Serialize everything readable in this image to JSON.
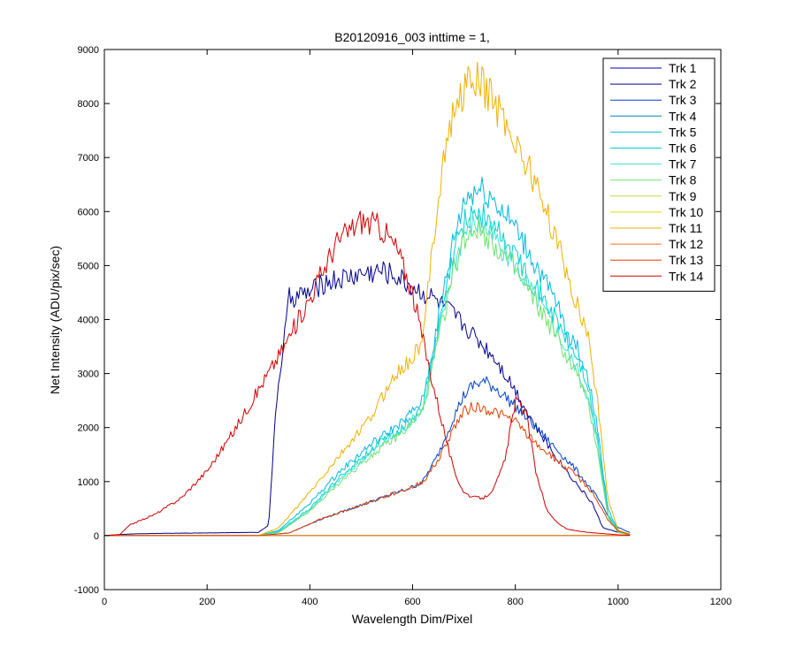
{
  "chart_data": {
    "type": "line",
    "title": "B20120916_003 inttime = 1,",
    "xlabel": "Wavelength Dim/Pixel",
    "ylabel": "Net Intensity (ADU/pix/sec)",
    "xlim": [
      0,
      1200
    ],
    "ylim": [
      -1000,
      9000
    ],
    "xticks": [
      0,
      200,
      400,
      600,
      800,
      1000,
      1200
    ],
    "yticks": [
      -1000,
      0,
      1000,
      2000,
      3000,
      4000,
      5000,
      6000,
      7000,
      8000,
      9000
    ],
    "grid": false,
    "legend_position": "top-right",
    "series": [
      {
        "name": "Trk 1",
        "color": "#0000a8",
        "x": [
          0,
          50,
          100,
          200,
          300,
          500,
          600,
          700,
          800,
          900,
          1000,
          1024
        ],
        "y": [
          0,
          0,
          0,
          0,
          0,
          0,
          0,
          0,
          0,
          0,
          0,
          0
        ]
      },
      {
        "name": "Trk 2",
        "color": "#00008f",
        "x": [
          0,
          50,
          100,
          200,
          300,
          320,
          335,
          360,
          400,
          430,
          460,
          500,
          540,
          570,
          600,
          640,
          680,
          700,
          720,
          760,
          800,
          840,
          880,
          920,
          950,
          970,
          1000,
          1024
        ],
        "y": [
          0,
          30,
          40,
          50,
          60,
          200,
          2500,
          4400,
          4500,
          4700,
          4750,
          4850,
          4900,
          4800,
          4600,
          4400,
          4100,
          3900,
          3700,
          3300,
          2700,
          2000,
          1450,
          950,
          600,
          150,
          60,
          20
        ]
      },
      {
        "name": "Trk 3",
        "color": "#0040c8",
        "x": [
          0,
          300,
          360,
          420,
          480,
          540,
          600,
          620,
          650,
          680,
          700,
          720,
          740,
          760,
          800,
          840,
          880,
          920,
          960,
          990,
          1024
        ],
        "y": [
          0,
          0,
          50,
          300,
          500,
          700,
          900,
          1000,
          1500,
          2200,
          2600,
          2800,
          2850,
          2750,
          2400,
          2000,
          1600,
          1200,
          700,
          200,
          50
        ]
      },
      {
        "name": "Trk 4",
        "color": "#0080c0",
        "x": [
          0,
          300,
          400,
          500,
          600,
          700,
          800,
          900,
          1024
        ],
        "y": [
          0,
          0,
          0,
          0,
          0,
          0,
          0,
          0,
          0
        ]
      },
      {
        "name": "Trk 5",
        "color": "#00b8e0",
        "x": [
          0,
          300,
          340,
          400,
          460,
          520,
          580,
          620,
          650,
          680,
          700,
          720,
          740,
          760,
          800,
          840,
          880,
          900,
          920,
          940,
          960,
          980,
          1000,
          1024
        ],
        "y": [
          0,
          0,
          100,
          600,
          1200,
          1700,
          2100,
          2500,
          4000,
          5500,
          6200,
          6400,
          6400,
          6200,
          5700,
          5000,
          4300,
          3800,
          3500,
          3000,
          2000,
          500,
          100,
          20
        ]
      },
      {
        "name": "Trk 6",
        "color": "#00d0d0",
        "x": [
          0,
          300,
          340,
          400,
          460,
          520,
          580,
          620,
          650,
          680,
          700,
          720,
          740,
          760,
          800,
          840,
          880,
          900,
          920,
          940,
          960,
          980,
          1000,
          1024
        ],
        "y": [
          0,
          0,
          80,
          500,
          1100,
          1600,
          2000,
          2400,
          3800,
          5200,
          5800,
          6000,
          5900,
          5700,
          5200,
          4600,
          4000,
          3600,
          3300,
          2800,
          1800,
          400,
          80,
          10
        ]
      },
      {
        "name": "Trk 7",
        "color": "#40e0d0",
        "x": [
          0,
          300,
          340,
          400,
          460,
          520,
          580,
          620,
          650,
          680,
          700,
          720,
          740,
          760,
          800,
          840,
          880,
          900,
          920,
          940,
          960,
          980,
          1000,
          1024
        ],
        "y": [
          0,
          0,
          70,
          480,
          1050,
          1550,
          1950,
          2350,
          3700,
          5000,
          5600,
          5800,
          5700,
          5500,
          5000,
          4400,
          3800,
          3400,
          3100,
          2600,
          1700,
          380,
          70,
          10
        ]
      },
      {
        "name": "Trk 8",
        "color": "#70e070",
        "x": [
          0,
          300,
          340,
          400,
          460,
          520,
          580,
          620,
          650,
          680,
          700,
          720,
          740,
          760,
          800,
          840,
          880,
          900,
          920,
          940,
          960,
          980,
          1000,
          1024
        ],
        "y": [
          0,
          0,
          60,
          450,
          1000,
          1500,
          1900,
          2300,
          3600,
          4900,
          5500,
          5700,
          5600,
          5400,
          4900,
          4300,
          3700,
          3300,
          3000,
          2500,
          1600,
          350,
          60,
          10
        ]
      },
      {
        "name": "Trk 9",
        "color": "#b0e040",
        "x": [
          0,
          300,
          400,
          500,
          600,
          700,
          800,
          900,
          1024
        ],
        "y": [
          0,
          0,
          0,
          0,
          0,
          0,
          0,
          0,
          0
        ]
      },
      {
        "name": "Trk 10",
        "color": "#e0e000",
        "x": [
          0,
          300,
          400,
          500,
          600,
          700,
          800,
          900,
          1024
        ],
        "y": [
          0,
          0,
          0,
          0,
          0,
          0,
          0,
          0,
          0
        ]
      },
      {
        "name": "Trk 11",
        "color": "#f0b000",
        "x": [
          0,
          300,
          340,
          400,
          460,
          520,
          560,
          600,
          620,
          640,
          660,
          680,
          700,
          720,
          740,
          760,
          780,
          800,
          840,
          880,
          900,
          920,
          940,
          960,
          980,
          1000,
          1024
        ],
        "y": [
          0,
          0,
          150,
          800,
          1500,
          2200,
          2900,
          3300,
          3600,
          5500,
          7000,
          7800,
          8300,
          8450,
          8300,
          8000,
          7700,
          7300,
          6500,
          5500,
          4800,
          4300,
          3800,
          2500,
          700,
          100,
          20
        ]
      },
      {
        "name": "Trk 12",
        "color": "#f07020",
        "x": [
          0,
          300,
          400,
          500,
          600,
          700,
          800,
          900,
          1024
        ],
        "y": [
          0,
          0,
          0,
          0,
          0,
          0,
          0,
          0,
          0
        ]
      },
      {
        "name": "Trk 13",
        "color": "#e04000",
        "x": [
          0,
          300,
          360,
          420,
          480,
          540,
          600,
          620,
          650,
          680,
          700,
          720,
          740,
          760,
          800,
          840,
          880,
          920,
          950,
          980,
          1000,
          1024
        ],
        "y": [
          0,
          0,
          50,
          300,
          500,
          700,
          900,
          1000,
          1400,
          2000,
          2300,
          2400,
          2350,
          2300,
          2100,
          1700,
          1400,
          1100,
          800,
          300,
          80,
          20
        ]
      },
      {
        "name": "Trk 14",
        "color": "#d00000",
        "x": [
          0,
          30,
          50,
          100,
          150,
          200,
          250,
          300,
          350,
          400,
          450,
          500,
          540,
          570,
          600,
          630,
          660,
          680,
          700,
          720,
          740,
          760,
          780,
          800,
          820,
          840,
          860,
          880,
          900,
          940,
          980,
          1000,
          1024
        ],
        "y": [
          0,
          20,
          200,
          400,
          700,
          1200,
          1900,
          2700,
          3500,
          4400,
          5400,
          5850,
          5700,
          5300,
          4500,
          3200,
          2000,
          1200,
          800,
          700,
          700,
          900,
          1400,
          2500,
          2300,
          1200,
          500,
          250,
          120,
          60,
          30,
          15,
          5
        ]
      }
    ]
  }
}
